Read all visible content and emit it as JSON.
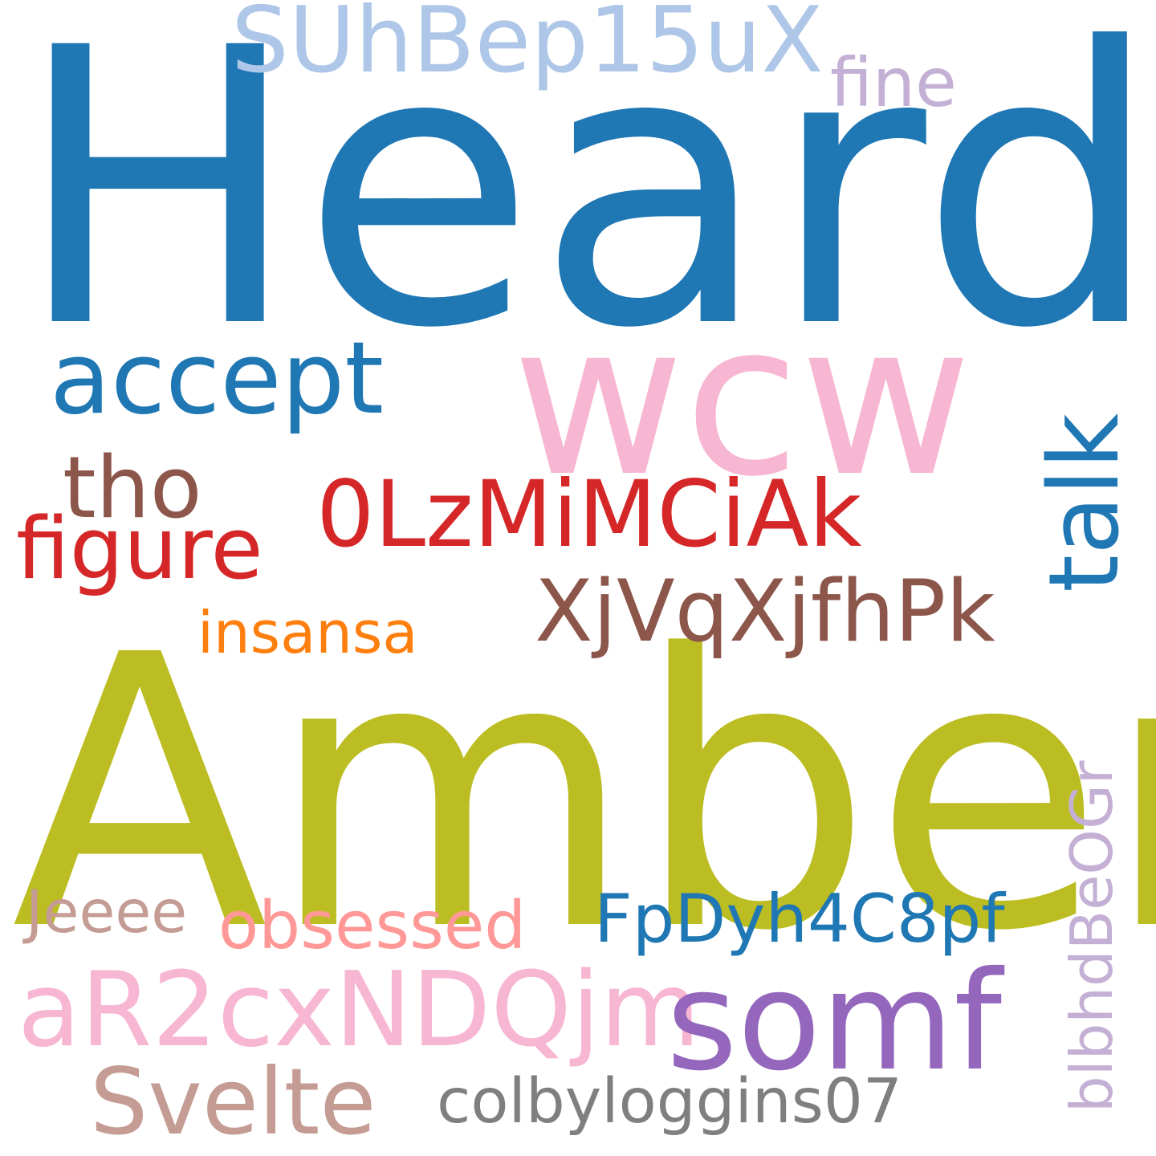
{
  "words": [
    {
      "text": "Heard",
      "color": "#1f77b4",
      "rotated": false
    },
    {
      "text": "Amber",
      "color": "#bcbd22",
      "rotated": false
    },
    {
      "text": "wcw",
      "color": "#f7b6d2",
      "rotated": false
    },
    {
      "text": "SUhBep15uX",
      "color": "#aec7e8",
      "rotated": false
    },
    {
      "text": "fine",
      "color": "#c5b0d5",
      "rotated": false
    },
    {
      "text": "accept",
      "color": "#1f77b4",
      "rotated": false
    },
    {
      "text": "talk",
      "color": "#1f77b4",
      "rotated": true
    },
    {
      "text": "tho",
      "color": "#8c564b",
      "rotated": false
    },
    {
      "text": "0LzMiMCiAk",
      "color": "#d62728",
      "rotated": false
    },
    {
      "text": "figure",
      "color": "#d62728",
      "rotated": false
    },
    {
      "text": "XjVqXjfhPk",
      "color": "#8c564b",
      "rotated": false
    },
    {
      "text": "insansa",
      "color": "#ff7f0e",
      "rotated": false
    },
    {
      "text": "Jeeee",
      "color": "#c49c94",
      "rotated": false
    },
    {
      "text": "obsessed",
      "color": "#ff9896",
      "rotated": false
    },
    {
      "text": "FpDyh4C8pf",
      "color": "#1f77b4",
      "rotated": false
    },
    {
      "text": "blbhdBeOGr",
      "color": "#c5b0d5",
      "rotated": true
    },
    {
      "text": "aR2cxNDQjm",
      "color": "#f7b6d2",
      "rotated": false
    },
    {
      "text": "somf",
      "color": "#9467bd",
      "rotated": false
    },
    {
      "text": "Svelte",
      "color": "#c49c94",
      "rotated": false
    },
    {
      "text": "colbyloggins07",
      "color": "#7f7f7f",
      "rotated": false
    }
  ]
}
